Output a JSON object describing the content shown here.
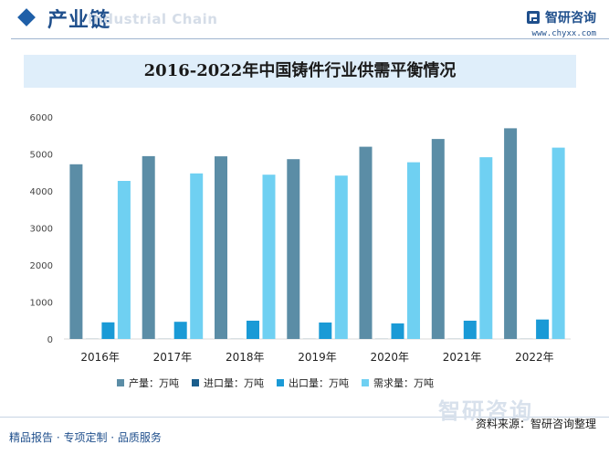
{
  "header": {
    "title": "产业链",
    "subtitle": "Industrial Chain",
    "brand_name": "智研咨询",
    "brand_url": "www.chyxx.com"
  },
  "colors": {
    "production": "#5b8da6",
    "import": "#1a5e8c",
    "export": "#1a9ad6",
    "demand": "#6fd0f2"
  },
  "chart_data": {
    "type": "bar",
    "title": "2016-2022年中国铸件行业供需平衡情况",
    "categories": [
      "2016年",
      "2017年",
      "2018年",
      "2019年",
      "2020年",
      "2021年",
      "2022年"
    ],
    "ylim": [
      0,
      6000
    ],
    "yticks": [
      0,
      1000,
      2000,
      3000,
      4000,
      5000,
      6000
    ],
    "legend_position": "bottom",
    "series": [
      {
        "name": "产量：万吨",
        "values": [
          4720,
          4940,
          4935,
          4860,
          5195,
          5405,
          5695
        ]
      },
      {
        "name": "进口量：万吨",
        "values": [
          2,
          2,
          2,
          2,
          2,
          2,
          2
        ]
      },
      {
        "name": "出口量：万吨",
        "values": [
          450,
          465,
          495,
          445,
          420,
          495,
          525
        ]
      },
      {
        "name": "需求量：万吨",
        "values": [
          4272,
          4475,
          4440,
          4415,
          4775,
          4910,
          5170
        ]
      }
    ]
  },
  "footer": {
    "left": "精品报告 · 专项定制 · 品质服务",
    "source_label": "资料来源：智研咨询整理"
  }
}
